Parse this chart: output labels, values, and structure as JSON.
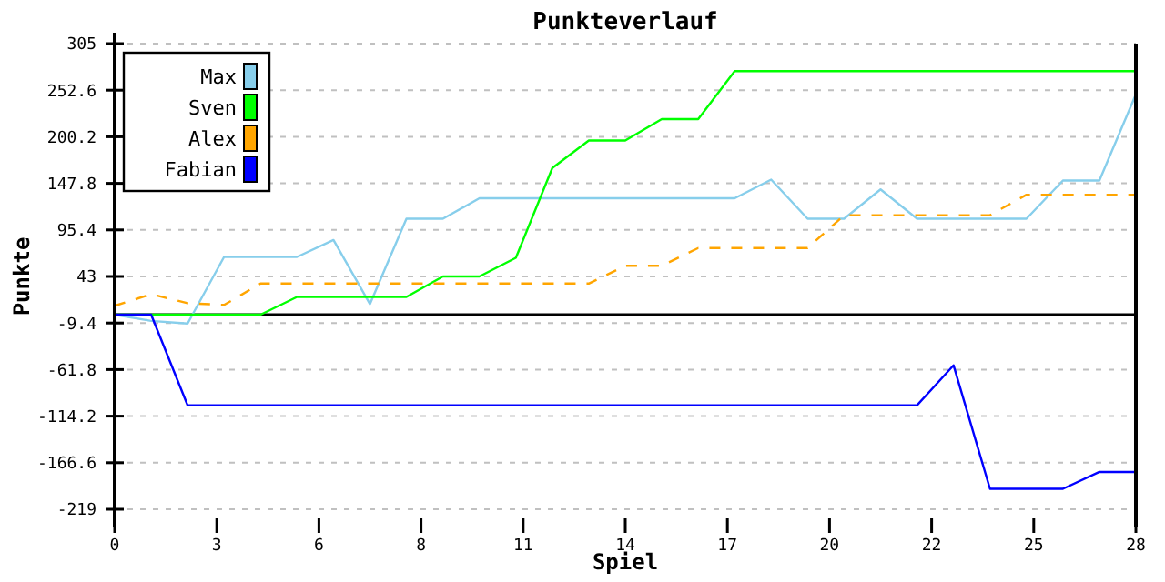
{
  "chart_data": {
    "type": "line",
    "title": "Punkteverlauf",
    "xlabel": "Spiel",
    "ylabel": "Punkte",
    "x": [
      0,
      1,
      2,
      3,
      4,
      5,
      6,
      7,
      8,
      9,
      10,
      11,
      12,
      13,
      14,
      15,
      16,
      17,
      18,
      19,
      20,
      21,
      22,
      23,
      24,
      25,
      26,
      27,
      28
    ],
    "series": [
      {
        "name": "Max",
        "color": "#87ceeb",
        "values": [
          0,
          -7,
          -10,
          65,
          65,
          65,
          84,
          12,
          108,
          108,
          131,
          131,
          131,
          131,
          131,
          131,
          131,
          131,
          152,
          108,
          108,
          141,
          108,
          108,
          108,
          108,
          151,
          151,
          248
        ]
      },
      {
        "name": "Sven",
        "color": "#00ff00",
        "values": [
          0,
          0,
          0,
          0,
          0,
          20,
          20,
          20,
          20,
          43,
          43,
          64,
          165,
          196,
          196,
          220,
          220,
          274,
          274,
          274,
          274,
          274,
          274,
          274,
          274,
          274,
          274,
          274,
          274
        ]
      },
      {
        "name": "Alex",
        "color": "#ffa500",
        "line_style": "dashed",
        "values": [
          10,
          23,
          13,
          11,
          35,
          35,
          35,
          35,
          35,
          35,
          35,
          35,
          35,
          35,
          55,
          55,
          75,
          75,
          75,
          75,
          112,
          112,
          112,
          112,
          112,
          135,
          135,
          135,
          135
        ]
      },
      {
        "name": "Fabian",
        "color": "#0000ff",
        "values": [
          0,
          0,
          -102,
          -102,
          -102,
          -102,
          -102,
          -102,
          -102,
          -102,
          -102,
          -102,
          -102,
          -102,
          -102,
          -102,
          -102,
          -102,
          -102,
          -102,
          -102,
          -102,
          -102,
          -57,
          -196,
          -196,
          -196,
          -177,
          -177
        ]
      }
    ],
    "xlim": [
      0,
      28
    ],
    "xticks": [
      0,
      {
        "value": 2.8,
        "label": "3"
      },
      {
        "value": 5.6,
        "label": "6"
      },
      {
        "value": 8.4,
        "label": "8"
      },
      {
        "value": 11.2,
        "label": "11"
      },
      14,
      {
        "value": 16.8,
        "label": "17"
      },
      {
        "value": 19.6,
        "label": "20"
      },
      {
        "value": 22.4,
        "label": "22"
      },
      {
        "value": 25.2,
        "label": "25"
      },
      28
    ],
    "ylim": [
      -219,
      305
    ],
    "yticks": [
      -219,
      -166.6,
      -114.2,
      -61.8,
      -9.4,
      43,
      95.4,
      147.8,
      200.2,
      252.6,
      305
    ],
    "ref_lines": [
      {
        "axis": "y",
        "value": 0,
        "color": "#000000"
      }
    ],
    "grid": "y",
    "legend": "top left",
    "marker": "none"
  }
}
